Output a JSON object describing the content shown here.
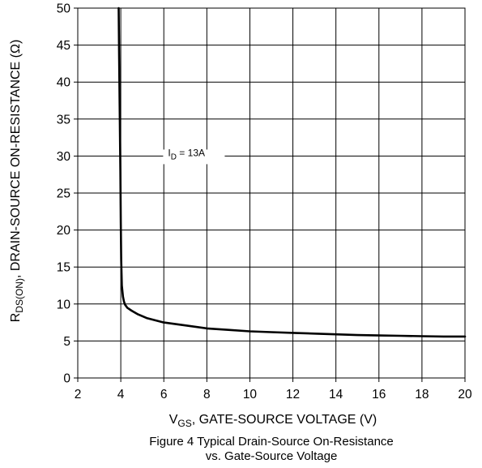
{
  "chart_data": {
    "type": "line",
    "xlabel": {
      "main": "V",
      "sub": "GS",
      "rest": ", GATE-SOURCE VOLTAGE (V)"
    },
    "ylabel": {
      "main": "R",
      "sub": "DS(ON)",
      "rest": ", DRAIN-SOURCE ON-RESISTANCE (Ω)"
    },
    "xlim": [
      2,
      20
    ],
    "ylim": [
      0,
      50
    ],
    "xticks": [
      2,
      4,
      6,
      8,
      10,
      12,
      14,
      16,
      18,
      20
    ],
    "yticks": [
      0,
      5,
      10,
      15,
      20,
      25,
      30,
      35,
      40,
      45,
      50
    ],
    "grid": true,
    "series": [
      {
        "name": "",
        "x": [
          3.9,
          3.92,
          3.95,
          3.98,
          4.0,
          4.02,
          4.05,
          4.1,
          4.15,
          4.2,
          4.3,
          4.5,
          4.8,
          5.2,
          5.6,
          6.0,
          7.0,
          8.0,
          9.0,
          10.0,
          11.0,
          12.0,
          13.0,
          14.0,
          15.0,
          16.0,
          17.0,
          18.0,
          19.0,
          20.0
        ],
        "y": [
          50,
          44,
          36,
          28,
          21,
          16,
          12.5,
          11.0,
          10.3,
          9.9,
          9.5,
          9.1,
          8.6,
          8.1,
          7.8,
          7.5,
          7.1,
          6.7,
          6.5,
          6.3,
          6.2,
          6.1,
          6.0,
          5.9,
          5.8,
          5.75,
          5.7,
          5.65,
          5.6,
          5.6
        ]
      }
    ],
    "annotation": {
      "main": "I",
      "sub": "D",
      "rest": " = 13A",
      "x": 7.4,
      "y": 30
    }
  },
  "caption": {
    "line1": "Figure 4 Typical Drain-Source On-Resistance",
    "line2": "vs. Gate-Source Voltage"
  }
}
